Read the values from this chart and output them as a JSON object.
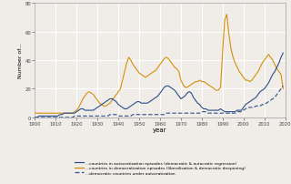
{
  "xlabel": "year",
  "ylabel": "Number of...",
  "ylim": [
    0,
    80
  ],
  "xlim": [
    1900,
    2020
  ],
  "xticks": [
    1900,
    1910,
    1920,
    1930,
    1940,
    1950,
    1960,
    1970,
    1980,
    1990,
    2000,
    2010,
    2020
  ],
  "yticks": [
    0,
    20,
    40,
    60,
    80
  ],
  "bg_color": "#f0ede8",
  "grid_color": "#ffffff",
  "line1_color": "#2d4e8a",
  "line2_color": "#d4900a",
  "line3_color": "#2d4e8a",
  "legend_labels": [
    "...countries in autocratization episodes (democratic & autocratic regression)",
    "...countries in democratization episodes (liberalisation & democratic deepening)",
    "...democratic countries under autocratization"
  ],
  "years": [
    1900,
    1901,
    1902,
    1903,
    1904,
    1905,
    1906,
    1907,
    1908,
    1909,
    1910,
    1911,
    1912,
    1913,
    1914,
    1915,
    1916,
    1917,
    1918,
    1919,
    1920,
    1921,
    1922,
    1923,
    1924,
    1925,
    1926,
    1927,
    1928,
    1929,
    1930,
    1931,
    1932,
    1933,
    1934,
    1935,
    1936,
    1937,
    1938,
    1939,
    1940,
    1941,
    1942,
    1943,
    1944,
    1945,
    1946,
    1947,
    1948,
    1949,
    1950,
    1951,
    1952,
    1953,
    1954,
    1955,
    1956,
    1957,
    1958,
    1959,
    1960,
    1961,
    1962,
    1963,
    1964,
    1965,
    1966,
    1967,
    1968,
    1969,
    1970,
    1971,
    1972,
    1973,
    1974,
    1975,
    1976,
    1977,
    1978,
    1979,
    1980,
    1981,
    1982,
    1983,
    1984,
    1985,
    1986,
    1987,
    1988,
    1989,
    1990,
    1991,
    1992,
    1993,
    1994,
    1995,
    1996,
    1997,
    1998,
    1999,
    2000,
    2001,
    2002,
    2003,
    2004,
    2005,
    2006,
    2007,
    2008,
    2009,
    2010,
    2011,
    2012,
    2013,
    2014,
    2015,
    2016,
    2017,
    2018,
    2019
  ],
  "line1_autocrat": [
    0,
    0,
    1,
    1,
    1,
    1,
    1,
    1,
    1,
    1,
    1,
    1,
    2,
    2,
    3,
    3,
    3,
    3,
    3,
    3,
    4,
    5,
    6,
    6,
    5,
    5,
    5,
    5,
    5,
    6,
    7,
    8,
    9,
    10,
    11,
    12,
    13,
    13,
    12,
    11,
    9,
    8,
    7,
    6,
    6,
    7,
    8,
    9,
    10,
    11,
    11,
    10,
    10,
    10,
    10,
    11,
    12,
    13,
    14,
    15,
    17,
    19,
    21,
    22,
    22,
    21,
    20,
    19,
    17,
    15,
    13,
    14,
    15,
    17,
    18,
    17,
    14,
    12,
    10,
    9,
    7,
    6,
    6,
    5,
    5,
    5,
    5,
    5,
    5,
    6,
    5,
    4,
    4,
    4,
    4,
    4,
    4,
    5,
    5,
    5,
    7,
    9,
    10,
    11,
    12,
    13,
    14,
    16,
    18,
    19,
    20,
    22,
    24,
    27,
    30,
    32,
    35,
    38,
    42,
    45
  ],
  "line2_democrat": [
    3,
    3,
    3,
    3,
    3,
    3,
    3,
    3,
    3,
    3,
    3,
    3,
    3,
    3,
    3,
    3,
    3,
    3,
    3,
    4,
    5,
    7,
    10,
    13,
    15,
    17,
    18,
    17,
    16,
    14,
    12,
    10,
    9,
    8,
    8,
    9,
    10,
    12,
    14,
    16,
    18,
    20,
    26,
    32,
    38,
    42,
    40,
    37,
    35,
    33,
    31,
    30,
    29,
    28,
    29,
    30,
    31,
    32,
    33,
    35,
    37,
    39,
    41,
    42,
    41,
    39,
    37,
    35,
    34,
    32,
    26,
    23,
    21,
    21,
    22,
    23,
    24,
    25,
    25,
    26,
    25,
    25,
    24,
    23,
    22,
    21,
    20,
    19,
    19,
    21,
    46,
    68,
    72,
    58,
    48,
    42,
    38,
    35,
    32,
    30,
    28,
    26,
    26,
    25,
    26,
    28,
    30,
    32,
    35,
    38,
    40,
    42,
    44,
    42,
    40,
    37,
    34,
    32,
    30,
    20
  ],
  "line3_demounder": [
    0,
    0,
    0,
    0,
    0,
    0,
    0,
    0,
    0,
    0,
    0,
    0,
    0,
    0,
    0,
    0,
    0,
    0,
    0,
    1,
    1,
    1,
    1,
    1,
    1,
    1,
    1,
    1,
    1,
    1,
    1,
    1,
    1,
    1,
    1,
    1,
    2,
    2,
    2,
    2,
    1,
    1,
    1,
    1,
    1,
    1,
    1,
    2,
    2,
    2,
    2,
    2,
    2,
    2,
    2,
    2,
    2,
    2,
    2,
    2,
    2,
    2,
    2,
    3,
    3,
    3,
    3,
    3,
    3,
    3,
    3,
    3,
    3,
    3,
    3,
    3,
    3,
    3,
    3,
    3,
    4,
    4,
    4,
    3,
    3,
    3,
    3,
    3,
    3,
    3,
    3,
    3,
    3,
    3,
    3,
    3,
    3,
    4,
    4,
    4,
    5,
    6,
    7,
    7,
    7,
    7,
    8,
    8,
    8,
    9,
    9,
    10,
    11,
    12,
    13,
    14,
    16,
    18,
    20,
    22
  ]
}
